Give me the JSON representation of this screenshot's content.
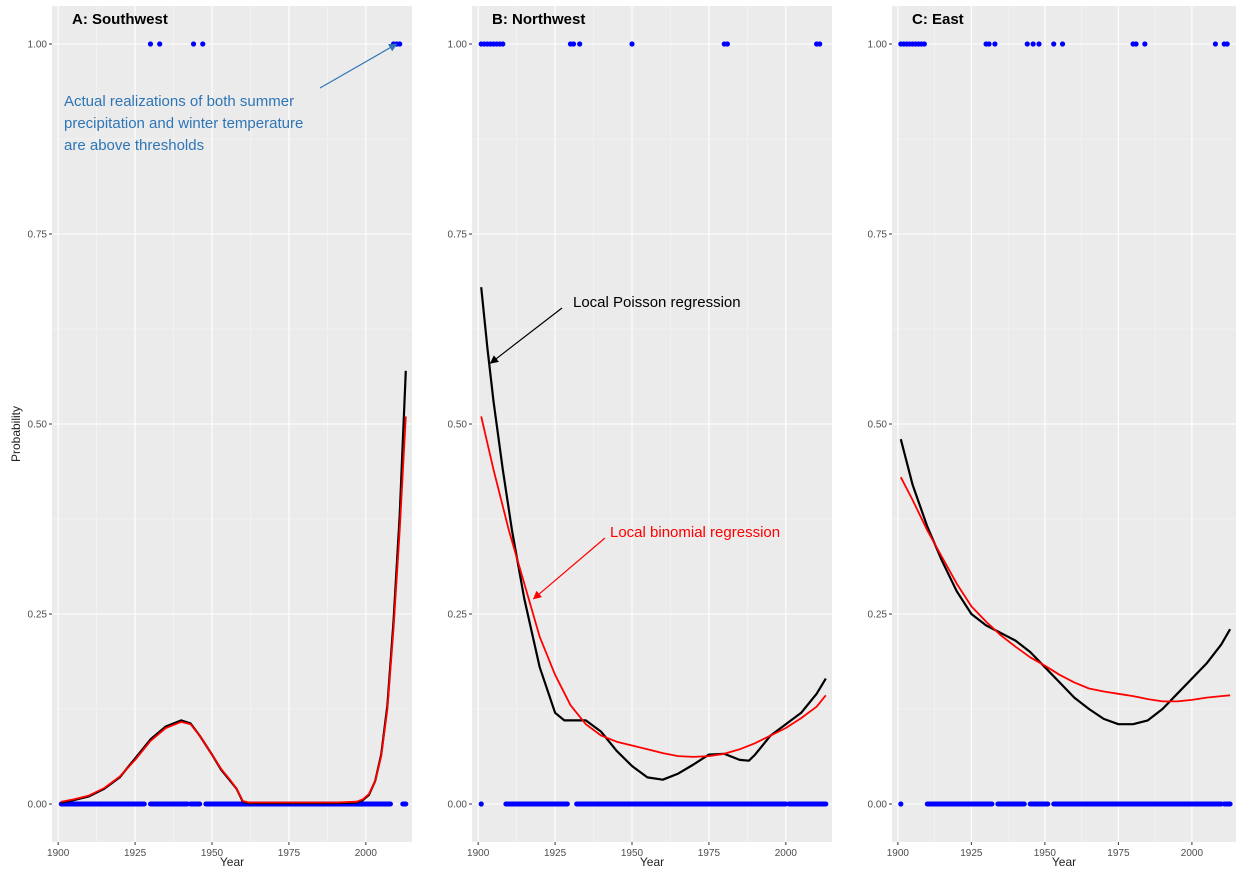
{
  "chart_data": [
    {
      "type": "line",
      "title": "A: Southwest",
      "xlabel": "Year",
      "ylabel": "Probability",
      "xlim": [
        1898,
        2015
      ],
      "ylim": [
        -0.05,
        1.05
      ],
      "xticks": [
        1900,
        1925,
        1950,
        1975,
        2000
      ],
      "yticks": [
        0,
        0.25,
        0.5,
        0.75,
        1
      ],
      "ytick_labels": [
        "0.00",
        "0.25",
        "0.50",
        "0.75",
        "1.00"
      ],
      "grid": true,
      "series": [
        {
          "key": "poisson",
          "color": "#000000",
          "x": [
            1901,
            1905,
            1910,
            1915,
            1920,
            1925,
            1930,
            1935,
            1940,
            1943,
            1946,
            1950,
            1953,
            1956,
            1958,
            1960,
            1962,
            1970,
            1980,
            1990,
            1997,
            1999,
            2001,
            2003,
            2005,
            2007,
            2009,
            2011,
            2013
          ],
          "y": [
            0.002,
            0.005,
            0.01,
            0.02,
            0.035,
            0.06,
            0.085,
            0.102,
            0.11,
            0.106,
            0.09,
            0.065,
            0.045,
            0.03,
            0.02,
            0.003,
            0.001,
            0.001,
            0.001,
            0.001,
            0.002,
            0.005,
            0.012,
            0.03,
            0.065,
            0.13,
            0.24,
            0.38,
            0.57
          ]
        },
        {
          "key": "binomial",
          "color": "#ff0000",
          "x": [
            1901,
            1905,
            1910,
            1915,
            1920,
            1925,
            1930,
            1935,
            1940,
            1943,
            1946,
            1950,
            1953,
            1956,
            1958,
            1960,
            1962,
            1970,
            1980,
            1990,
            1997,
            1999,
            2001,
            2003,
            2005,
            2007,
            2009,
            2011,
            2013
          ],
          "y": [
            0.003,
            0.006,
            0.011,
            0.021,
            0.036,
            0.058,
            0.083,
            0.1,
            0.108,
            0.105,
            0.09,
            0.065,
            0.046,
            0.031,
            0.02,
            0.004,
            0.002,
            0.002,
            0.002,
            0.002,
            0.003,
            0.006,
            0.013,
            0.03,
            0.063,
            0.125,
            0.23,
            0.36,
            0.51
          ]
        }
      ],
      "events": {
        "ones": [
          1930,
          1933,
          1944,
          1947,
          2009,
          2010,
          2011
        ],
        "zero_segments": [
          [
            1901,
            1928
          ],
          [
            1930,
            1942
          ],
          [
            1943,
            1946
          ],
          [
            1948,
            2008
          ],
          [
            2012,
            2013
          ]
        ]
      },
      "annotations": [
        {
          "key": "events",
          "color": "#2e75b6",
          "lines": [
            "Actual realizations of both summer",
            "precipitation and winter temperature",
            "are above thresholds"
          ],
          "arrow_to": {
            "x": 2010,
            "y": 1.0
          }
        }
      ]
    },
    {
      "type": "line",
      "title": "B: Northwest",
      "xlabel": "Year",
      "ylabel": "",
      "xlim": [
        1898,
        2015
      ],
      "ylim": [
        -0.05,
        1.05
      ],
      "xticks": [
        1900,
        1925,
        1950,
        1975,
        2000
      ],
      "yticks": [
        0,
        0.25,
        0.5,
        0.75,
        1
      ],
      "ytick_labels": [
        "0.00",
        "0.25",
        "0.50",
        "0.75",
        "1.00"
      ],
      "grid": true,
      "series": [
        {
          "key": "poisson",
          "color": "#000000",
          "x": [
            1901,
            1903,
            1905,
            1908,
            1911,
            1915,
            1920,
            1925,
            1928,
            1930,
            1935,
            1940,
            1945,
            1950,
            1955,
            1960,
            1965,
            1970,
            1975,
            1980,
            1985,
            1988,
            1990,
            1995,
            2000,
            2005,
            2010,
            2013
          ],
          "y": [
            0.68,
            0.6,
            0.53,
            0.44,
            0.36,
            0.27,
            0.18,
            0.12,
            0.11,
            0.11,
            0.11,
            0.095,
            0.07,
            0.05,
            0.035,
            0.032,
            0.04,
            0.052,
            0.065,
            0.066,
            0.058,
            0.057,
            0.065,
            0.09,
            0.105,
            0.12,
            0.145,
            0.165
          ]
        },
        {
          "key": "binomial",
          "color": "#ff0000",
          "x": [
            1901,
            1905,
            1910,
            1915,
            1920,
            1925,
            1930,
            1935,
            1940,
            1945,
            1950,
            1955,
            1960,
            1965,
            1970,
            1975,
            1980,
            1985,
            1990,
            1995,
            2000,
            2005,
            2010,
            2013
          ],
          "y": [
            0.51,
            0.44,
            0.36,
            0.29,
            0.22,
            0.17,
            0.13,
            0.105,
            0.09,
            0.082,
            0.077,
            0.072,
            0.067,
            0.063,
            0.062,
            0.063,
            0.066,
            0.072,
            0.08,
            0.09,
            0.1,
            0.113,
            0.128,
            0.143
          ]
        }
      ],
      "events": {
        "ones": [
          1901,
          1902,
          1903,
          1904,
          1905,
          1906,
          1907,
          1908,
          1930,
          1931,
          1933,
          1950,
          1980,
          1981,
          2010,
          2011
        ],
        "zero_segments": [
          [
            1901,
            1901
          ],
          [
            1909,
            1929
          ],
          [
            1932,
            2000
          ],
          [
            2001,
            2013
          ]
        ]
      },
      "annotations": [
        {
          "key": "poisson",
          "color": "#000000",
          "lines": [
            "Local Poisson regression"
          ],
          "arrow_to": {
            "x": 1904,
            "y": 0.58
          }
        },
        {
          "key": "binomial",
          "color": "#ff0000",
          "lines": [
            "Local binomial regression"
          ],
          "arrow_to": {
            "x": 1918,
            "y": 0.27
          }
        }
      ]
    },
    {
      "type": "line",
      "title": "C: East",
      "xlabel": "Year",
      "ylabel": "",
      "xlim": [
        1898,
        2015
      ],
      "ylim": [
        -0.05,
        1.05
      ],
      "xticks": [
        1900,
        1925,
        1950,
        1975,
        2000
      ],
      "yticks": [
        0,
        0.25,
        0.5,
        0.75,
        1
      ],
      "ytick_labels": [
        "0.00",
        "0.25",
        "0.50",
        "0.75",
        "1.00"
      ],
      "grid": true,
      "series": [
        {
          "key": "poisson",
          "color": "#000000",
          "x": [
            1901,
            1905,
            1910,
            1915,
            1920,
            1925,
            1930,
            1935,
            1940,
            1945,
            1950,
            1955,
            1960,
            1965,
            1970,
            1975,
            1980,
            1985,
            1990,
            1995,
            2000,
            2005,
            2010,
            2013
          ],
          "y": [
            0.48,
            0.42,
            0.365,
            0.32,
            0.28,
            0.25,
            0.235,
            0.225,
            0.215,
            0.2,
            0.18,
            0.16,
            0.14,
            0.125,
            0.112,
            0.105,
            0.105,
            0.11,
            0.125,
            0.145,
            0.165,
            0.185,
            0.21,
            0.23
          ]
        },
        {
          "key": "binomial",
          "color": "#ff0000",
          "x": [
            1901,
            1905,
            1910,
            1915,
            1920,
            1925,
            1930,
            1935,
            1940,
            1945,
            1950,
            1955,
            1960,
            1965,
            1970,
            1975,
            1980,
            1985,
            1990,
            1995,
            2000,
            2005,
            2010,
            2013
          ],
          "y": [
            0.43,
            0.4,
            0.36,
            0.325,
            0.29,
            0.26,
            0.24,
            0.222,
            0.207,
            0.193,
            0.182,
            0.17,
            0.16,
            0.152,
            0.148,
            0.145,
            0.142,
            0.138,
            0.135,
            0.135,
            0.137,
            0.14,
            0.142,
            0.143
          ]
        }
      ],
      "events": {
        "ones": [
          1901,
          1902,
          1903,
          1904,
          1905,
          1906,
          1907,
          1908,
          1909,
          1930,
          1931,
          1933,
          1944,
          1946,
          1948,
          1953,
          1956,
          1980,
          1981,
          1984,
          2008,
          2011,
          2012
        ],
        "zero_segments": [
          [
            1901,
            1901
          ],
          [
            1910,
            1932
          ],
          [
            1934,
            1943
          ],
          [
            1945,
            1951
          ],
          [
            1953,
            2010
          ],
          [
            2011,
            2013
          ]
        ]
      },
      "annotations": []
    }
  ]
}
